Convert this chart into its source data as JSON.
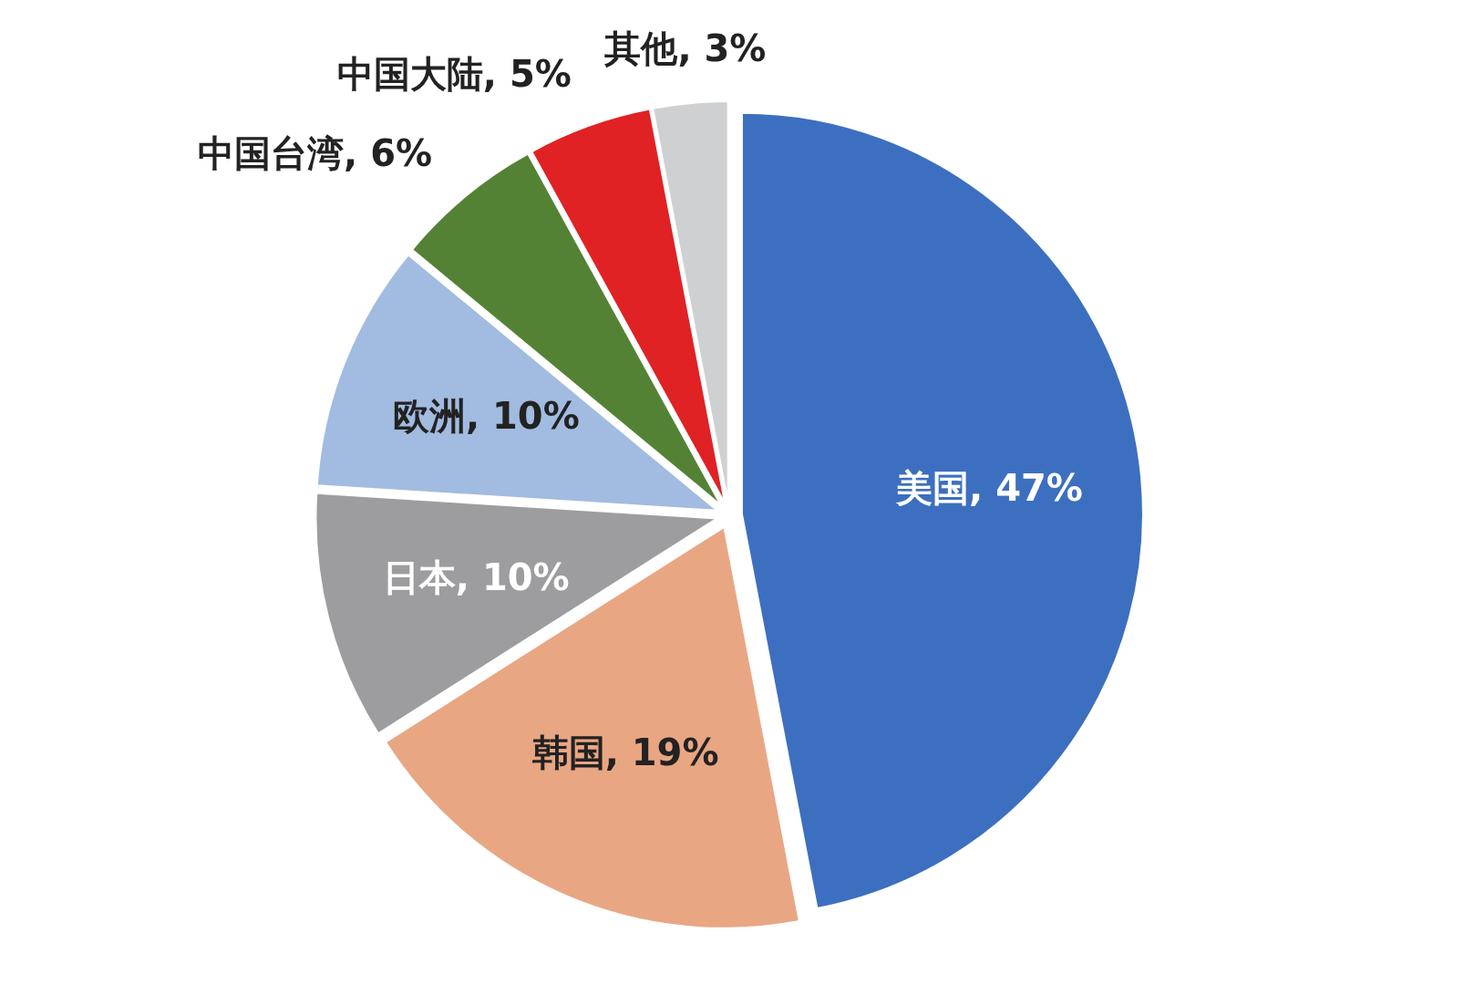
{
  "chart_data": {
    "type": "pie",
    "categories": [
      "美国",
      "韩国",
      "日本",
      "欧洲",
      "中国台湾",
      "中国大陆",
      "其他"
    ],
    "values": [
      47,
      19,
      10,
      10,
      6,
      5,
      3
    ],
    "value_labels": [
      "47%",
      "19%",
      "10%",
      "10%",
      "6%",
      "5%",
      "3%"
    ],
    "colors": [
      "#3d6fc0",
      "#e9a683",
      "#9d9d9f",
      "#a2bbe0",
      "#548235",
      "#e02224",
      "#cfd0d2"
    ]
  }
}
